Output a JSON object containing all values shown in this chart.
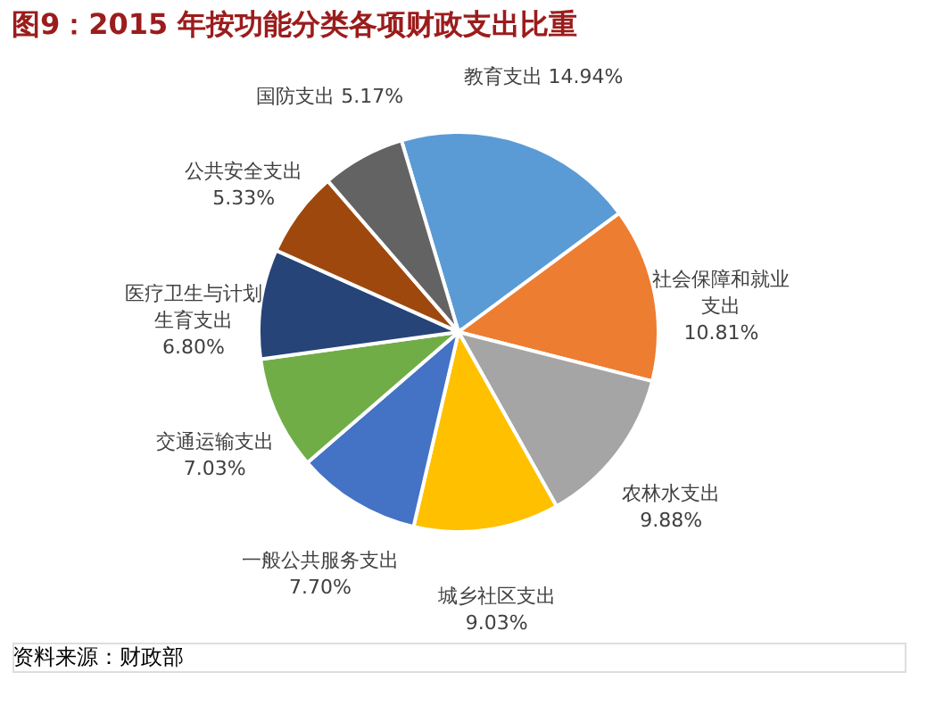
{
  "chart_data": {
    "type": "pie",
    "title": "图9：2015 年按功能分类各项财政支出比重",
    "categories": [
      "教育支出",
      "社会保障和就业支出",
      "农林水支出",
      "城乡社区支出",
      "一般公共服务支出",
      "交通运输支出",
      "医疗卫生与计划生育支出",
      "公共安全支出",
      "国防支出"
    ],
    "values": [
      14.94,
      10.81,
      9.88,
      9.03,
      7.7,
      7.03,
      6.8,
      5.33,
      5.17
    ],
    "colors": [
      "#5b9bd5",
      "#ed7d31",
      "#a5a5a5",
      "#ffc000",
      "#4472c4",
      "#70ad47",
      "#264478",
      "#9e480e",
      "#636363"
    ],
    "value_labels": [
      "14.94%",
      "10.81%",
      "9.88%",
      "9.03%",
      "7.70%",
      "7.03%",
      "6.80%",
      "5.33%",
      "5.17%"
    ],
    "annotations": [
      "资料来源：财政部"
    ]
  }
}
